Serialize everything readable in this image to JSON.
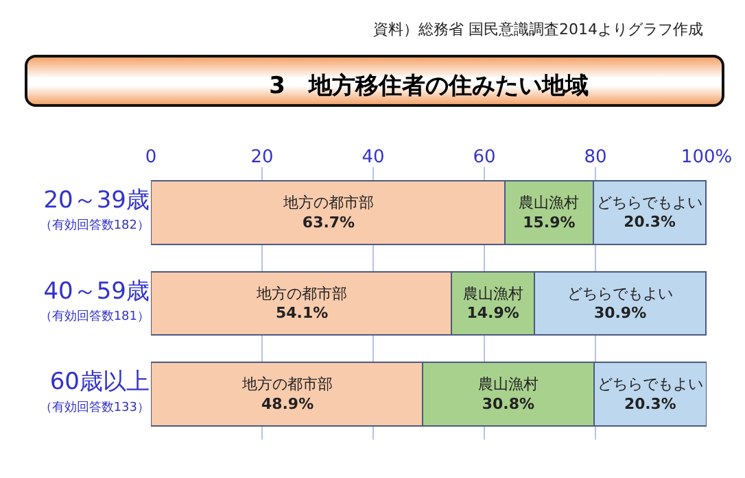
{
  "chart_data": {
    "type": "bar",
    "orientation": "horizontal",
    "stacked": true,
    "title": "3　地方移住者の住みたい地域",
    "annotations": [
      "資料）総務省 国民意識調査2014よりグラフ作成"
    ],
    "categories": [
      "20～39歳（有効回答数182）",
      "40～59歳（有効回答数181）",
      "60歳以上（有効回答数133）"
    ],
    "series": [
      {
        "name": "地方の都市部",
        "color": "#f8cbad",
        "values": [
          63.7,
          54.1,
          48.9
        ],
        "value_labels": [
          "63.7%",
          "54.1%",
          "48.9%"
        ]
      },
      {
        "name": "農山漁村",
        "color": "#a9d18e",
        "values": [
          15.9,
          14.9,
          30.8
        ],
        "value_labels": [
          "15.9%",
          "14.9%",
          "30.8%"
        ]
      },
      {
        "name": "どちらでもよい",
        "color": "#bdd7ee",
        "values": [
          20.3,
          30.9,
          20.3
        ],
        "value_labels": [
          "20.3%",
          "30.9%",
          "20.3%"
        ]
      }
    ],
    "xlim": [
      0,
      100
    ],
    "xticks": [
      0,
      20,
      40,
      60,
      80,
      {
        "value": 100,
        "label": "100%"
      }
    ],
    "grid": "x",
    "legend": false
  }
}
